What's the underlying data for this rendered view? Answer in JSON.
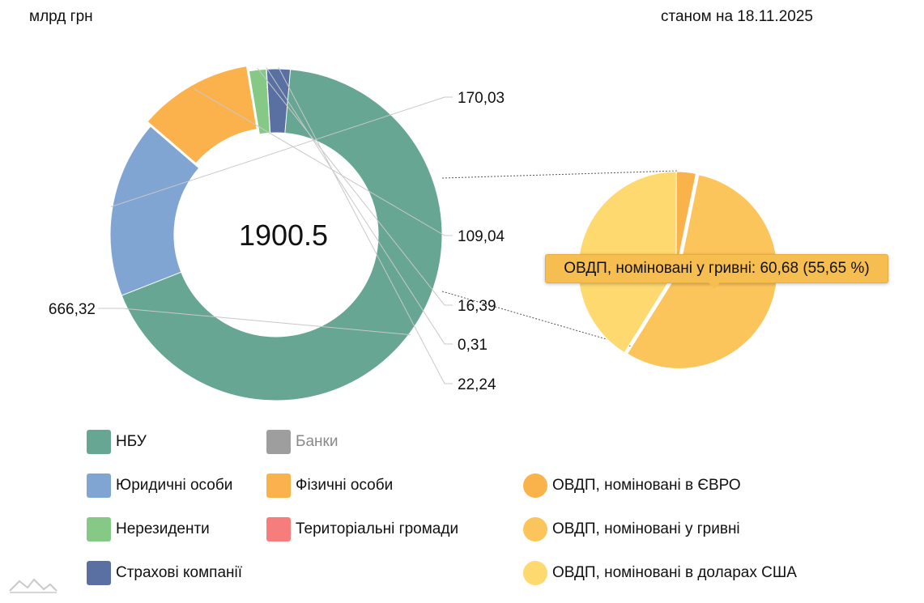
{
  "header": {
    "unit": "млрд грн",
    "as_of": "станом на 18.11.2025"
  },
  "colors": {
    "nbu": "#67a692",
    "legal": "#80a5d3",
    "individuals": "#fbb24d",
    "nonresidents": "#86c987",
    "insurance": "#5a70a2",
    "banks": "#9e9e9e",
    "communities": "#f77d7d",
    "ovdp_eur": "#fab24b",
    "ovdp_uah": "#fcc55b",
    "ovdp_usd": "#fed970"
  },
  "chart_data": [
    {
      "type": "pie",
      "variant": "donut",
      "center_label": "1900.5",
      "slices": [
        {
          "key": "nbu",
          "value": 666.32,
          "label": "666,32"
        },
        {
          "key": "legal",
          "value": 170.03,
          "label": "170,03"
        },
        {
          "key": "individuals",
          "value": 109.04,
          "label": "109,04"
        },
        {
          "key": "nonresidents",
          "value": 16.39,
          "label": "16,39"
        },
        {
          "key": "communities",
          "value": 0.31,
          "label": "0,31"
        },
        {
          "key": "insurance",
          "value": 22.24,
          "label": "22,24"
        }
      ],
      "exploded_slice": "individuals"
    },
    {
      "type": "pie",
      "parent_slice": "individuals",
      "slices": [
        {
          "key": "ovdp_eur",
          "value": 3.5
        },
        {
          "key": "ovdp_uah",
          "value": 60.68,
          "percent": 55.65
        },
        {
          "key": "ovdp_usd",
          "value": 44.86
        }
      ]
    }
  ],
  "tooltip": {
    "text": "ОВДП, номіновані у гривні: 60,68 (55,65 %)"
  },
  "legend": [
    {
      "key": "nbu",
      "label": "НБУ",
      "shape": "square",
      "muted": false
    },
    {
      "key": "banks",
      "label": "Банки",
      "shape": "square",
      "muted": true
    },
    {
      "key": "legal",
      "label": "Юридичні особи",
      "shape": "square",
      "muted": false
    },
    {
      "key": "individuals",
      "label": "Фізичні особи",
      "shape": "square",
      "muted": false
    },
    {
      "key": "ovdp_eur",
      "label": "ОВДП, номіновані в ЄВРО",
      "shape": "circle",
      "muted": false
    },
    {
      "key": "nonresidents",
      "label": "Нерезиденти",
      "shape": "square",
      "muted": false
    },
    {
      "key": "communities",
      "label": "Територіальні громади",
      "shape": "square",
      "muted": false
    },
    {
      "key": "ovdp_uah",
      "label": "ОВДП, номіновані у гривні",
      "shape": "circle",
      "muted": false
    },
    {
      "key": "insurance",
      "label": "Страхові компанії",
      "shape": "square",
      "muted": false
    },
    {
      "key": "ovdp_usd",
      "label": "ОВДП, номіновані в доларах США",
      "shape": "circle",
      "muted": false
    }
  ],
  "logo_icon": "mountain-logo-icon"
}
